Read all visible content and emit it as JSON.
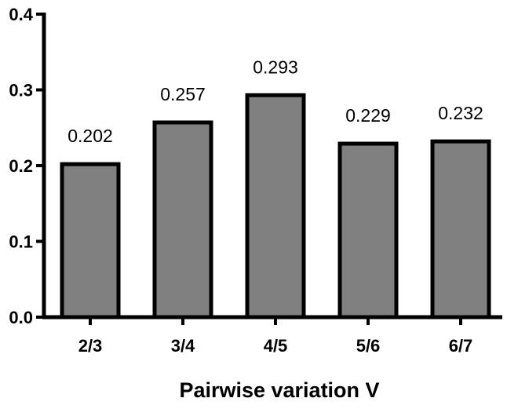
{
  "chart_data": {
    "type": "bar",
    "title": "",
    "xlabel": "Pairwise variation V",
    "ylabel": "",
    "categories": [
      "2/3",
      "3/4",
      "4/5",
      "5/6",
      "6/7"
    ],
    "values": [
      0.202,
      0.257,
      0.293,
      0.229,
      0.232
    ],
    "data_labels": [
      "0.202",
      "0.257",
      "0.293",
      "0.229",
      "0.232"
    ],
    "ylim": [
      0,
      0.4
    ],
    "yticks": [
      0.0,
      0.1,
      0.2,
      0.3,
      0.4
    ],
    "ytick_labels": [
      "0.0",
      "0.1",
      "0.2",
      "0.3",
      "0.4"
    ],
    "grid": false,
    "legend": "none",
    "bar_fill": "#808080",
    "bar_stroke": "#000000"
  }
}
